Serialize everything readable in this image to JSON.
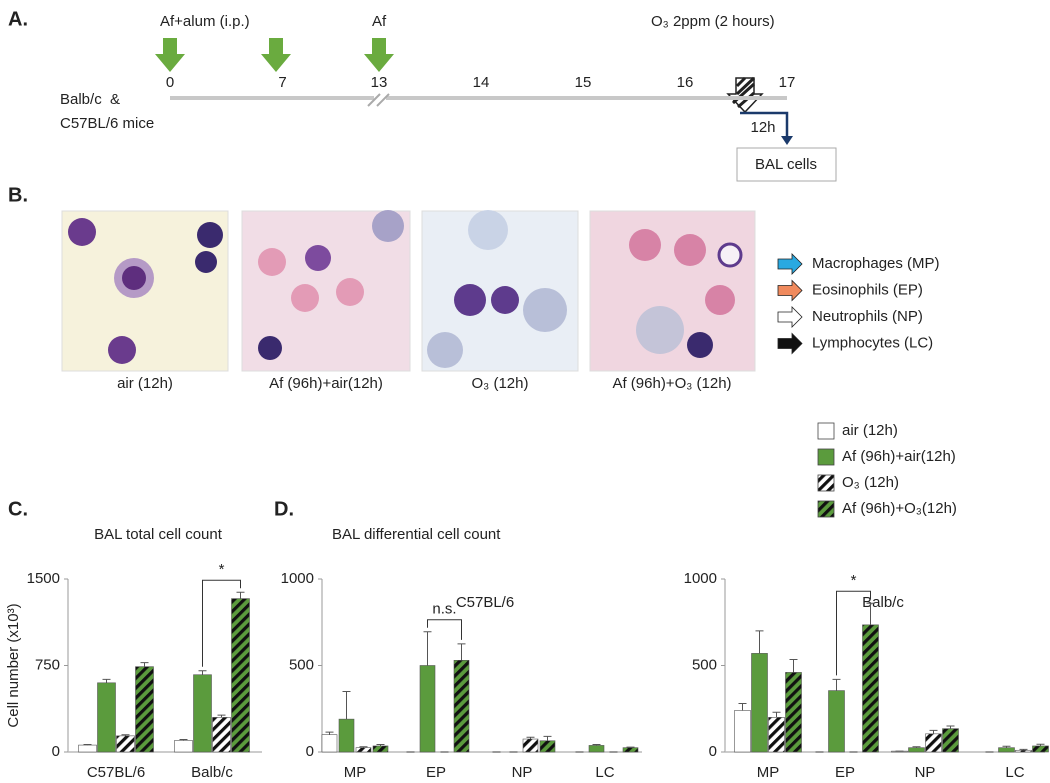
{
  "panel_a": {
    "label": "A.",
    "treatment_1": "Af+alum (i.p.)",
    "treatment_2": "Af",
    "exposure": "O₃ 2ppm (2 hours)",
    "mice": [
      "Balb/c  &",
      "C57BL/6 mice"
    ],
    "days": [
      0,
      7,
      13,
      14,
      15,
      16,
      17
    ],
    "interval": "12h",
    "readout": "BAL cells"
  },
  "panel_b": {
    "label": "B.",
    "images": [
      "air (12h)",
      "Af (96h)+air(12h)",
      "O₃ (12h)",
      "Af (96h)+O₃ (12h)"
    ],
    "legend": [
      {
        "name": "Macrophages (MP)",
        "color": "#29a9e1"
      },
      {
        "name": "Eosinophils (EP)",
        "color": "#f08a5d"
      },
      {
        "name": "Neutrophils (NP)",
        "color": "#ffffff"
      },
      {
        "name": "Lymphocytes (LC)",
        "color": "#111111"
      }
    ]
  },
  "panel_c": {
    "label": "C."
  },
  "panel_d": {
    "label": "D.",
    "title": "BAL differential cell count"
  },
  "chart_data": [
    {
      "type": "bar",
      "title": "BAL total cell count",
      "y_label": "Cell number (x10³)",
      "categories": [
        "C57BL/6",
        "Balb/c"
      ],
      "series": [
        {
          "name": "air (12h)",
          "color": "#ffffff",
          "hatch": false,
          "values": [
            60,
            100
          ],
          "errors": [
            5,
            8
          ]
        },
        {
          "name": "Af (96h)+air(12h)",
          "color": "#5b9b3d",
          "hatch": false,
          "values": [
            600,
            670
          ],
          "errors": [
            30,
            35
          ]
        },
        {
          "name": "O₃ (12h)",
          "color": "#ffffff",
          "hatch": true,
          "values": [
            140,
            300
          ],
          "errors": [
            10,
            20
          ]
        },
        {
          "name": "Af (96h)+O₃(12h)",
          "color": "#5b9b3d",
          "hatch": true,
          "values": [
            740,
            1330
          ],
          "errors": [
            35,
            55
          ]
        }
      ],
      "ylim": [
        0,
        1500
      ],
      "yticks": [
        0,
        750,
        1500
      ],
      "significance": "*"
    },
    {
      "type": "bar",
      "title": "C57BL/6",
      "categories": [
        "MP",
        "EP",
        "NP",
        "LC"
      ],
      "series": [
        {
          "color": "#ffffff",
          "hatch": false,
          "values": [
            100,
            0,
            0,
            0
          ],
          "errors": [
            15,
            0,
            0,
            0
          ]
        },
        {
          "color": "#5b9b3d",
          "hatch": false,
          "values": [
            190,
            500,
            0,
            38
          ],
          "errors": [
            160,
            195,
            0,
            5
          ]
        },
        {
          "color": "#ffffff",
          "hatch": true,
          "values": [
            25,
            0,
            75,
            0
          ],
          "errors": [
            5,
            0,
            10,
            0
          ]
        },
        {
          "color": "#5b9b3d",
          "hatch": true,
          "values": [
            35,
            530,
            65,
            25
          ],
          "errors": [
            8,
            95,
            25,
            3
          ]
        }
      ],
      "ylim": [
        0,
        1000
      ],
      "yticks": [
        0,
        500,
        1000
      ],
      "significance": "n.s."
    },
    {
      "type": "bar",
      "title": "Balb/c",
      "categories": [
        "MP",
        "EP",
        "NP",
        "LC"
      ],
      "series": [
        {
          "color": "#ffffff",
          "hatch": false,
          "values": [
            240,
            0,
            5,
            0
          ],
          "errors": [
            40,
            0,
            0,
            0
          ]
        },
        {
          "color": "#5b9b3d",
          "hatch": false,
          "values": [
            570,
            355,
            25,
            25
          ],
          "errors": [
            130,
            65,
            5,
            8
          ]
        },
        {
          "color": "#ffffff",
          "hatch": true,
          "values": [
            200,
            0,
            105,
            10
          ],
          "errors": [
            30,
            0,
            20,
            5
          ]
        },
        {
          "color": "#5b9b3d",
          "hatch": true,
          "values": [
            460,
            735,
            135,
            35
          ],
          "errors": [
            75,
            125,
            15,
            10
          ]
        }
      ],
      "ylim": [
        0,
        1000
      ],
      "yticks": [
        0,
        500,
        1000
      ],
      "significance": "*"
    }
  ]
}
